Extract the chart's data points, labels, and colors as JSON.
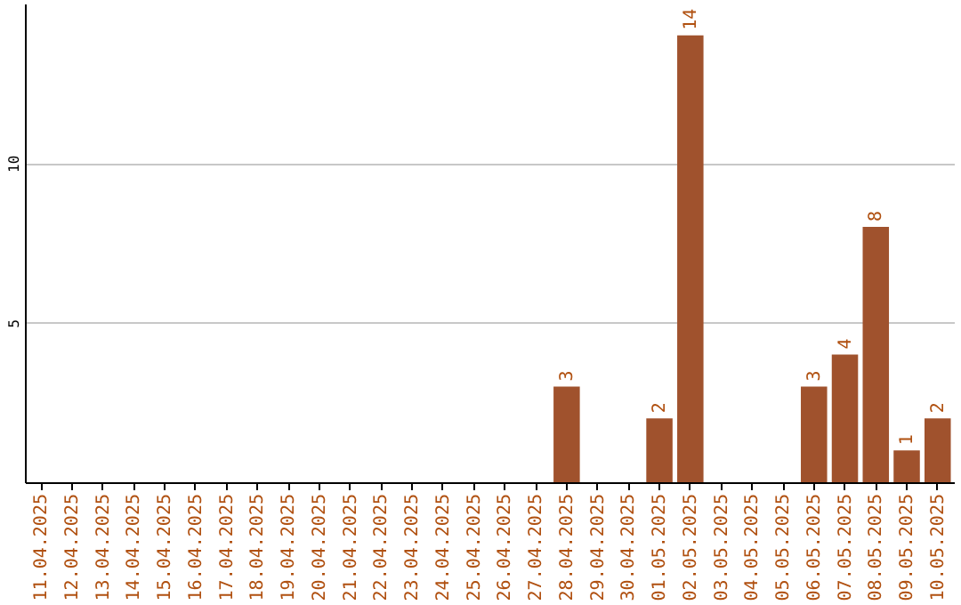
{
  "chart_data": {
    "type": "bar",
    "categories": [
      "11.04.2025",
      "12.04.2025",
      "13.04.2025",
      "14.04.2025",
      "15.04.2025",
      "16.04.2025",
      "17.04.2025",
      "18.04.2025",
      "19.04.2025",
      "20.04.2025",
      "21.04.2025",
      "22.04.2025",
      "23.04.2025",
      "24.04.2025",
      "25.04.2025",
      "26.04.2025",
      "27.04.2025",
      "28.04.2025",
      "29.04.2025",
      "30.04.2025",
      "01.05.2025",
      "02.05.2025",
      "03.05.2025",
      "04.05.2025",
      "05.05.2025",
      "06.05.2025",
      "07.05.2025",
      "08.05.2025",
      "09.05.2025",
      "10.05.2025"
    ],
    "values": [
      0,
      0,
      0,
      0,
      0,
      0,
      0,
      0,
      0,
      0,
      0,
      0,
      0,
      0,
      0,
      0,
      0,
      3,
      0,
      0,
      2,
      14,
      0,
      0,
      0,
      3,
      4,
      8,
      1,
      2
    ],
    "value_labels": [
      null,
      null,
      null,
      null,
      null,
      null,
      null,
      null,
      null,
      null,
      null,
      null,
      null,
      null,
      null,
      null,
      null,
      "3",
      null,
      null,
      "2",
      "14",
      null,
      null,
      null,
      "3",
      "4",
      "8",
      "1",
      "2"
    ],
    "color": "#a0522d",
    "ylim": [
      0,
      15
    ],
    "yticks": [
      5,
      10
    ],
    "grid": "y"
  }
}
